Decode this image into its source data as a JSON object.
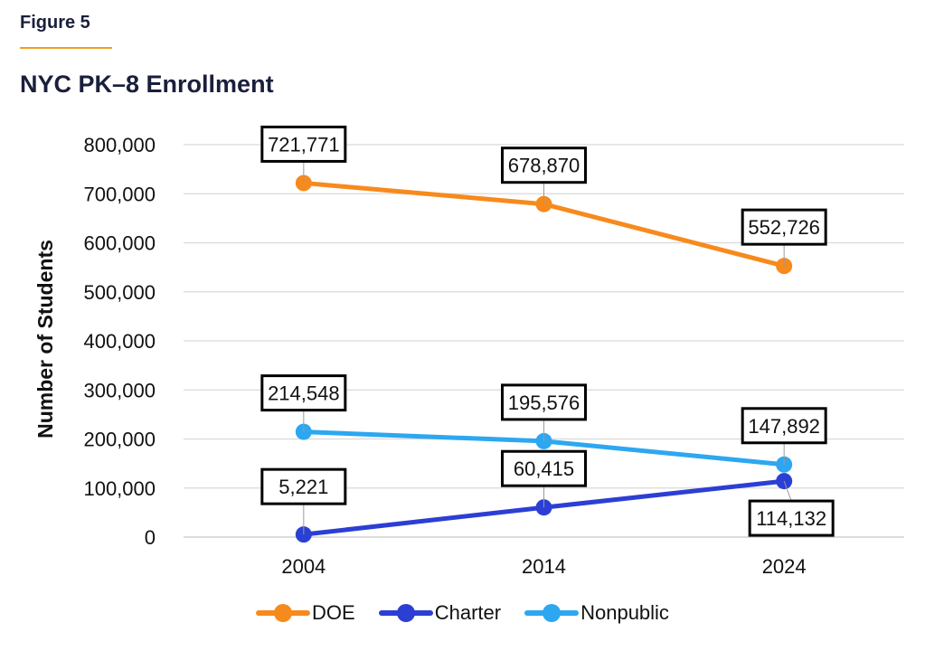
{
  "figure_label": "Figure 5",
  "colors": {
    "accent": "#f0a020",
    "title": "#1a1f3c"
  },
  "chart_data": {
    "type": "line",
    "title": "NYC PK–8 Enrollment",
    "xlabel": "",
    "ylabel": "Number of Students",
    "categories": [
      "2004",
      "2014",
      "2024"
    ],
    "ylim": [
      0,
      800000
    ],
    "yticks": [
      0,
      100000,
      200000,
      300000,
      400000,
      500000,
      600000,
      700000,
      800000
    ],
    "ytick_labels": [
      "0",
      "100,000",
      "200,000",
      "300,000",
      "400,000",
      "500,000",
      "600,000",
      "700,000",
      "800,000"
    ],
    "grid": true,
    "legend_position": "bottom",
    "series": [
      {
        "name": "DOE",
        "color": "#f78a1d",
        "values": [
          721771,
          678870,
          552726
        ],
        "labels": [
          "721,771",
          "678,870",
          "552,726"
        ]
      },
      {
        "name": "Charter",
        "color": "#2b3fd4",
        "values": [
          5221,
          60415,
          114132
        ],
        "labels": [
          "5,221",
          "60,415",
          "114,132"
        ]
      },
      {
        "name": "Nonpublic",
        "color": "#2da7f0",
        "values": [
          214548,
          195576,
          147892
        ],
        "labels": [
          "214,548",
          "195,576",
          "147,892"
        ]
      }
    ]
  }
}
